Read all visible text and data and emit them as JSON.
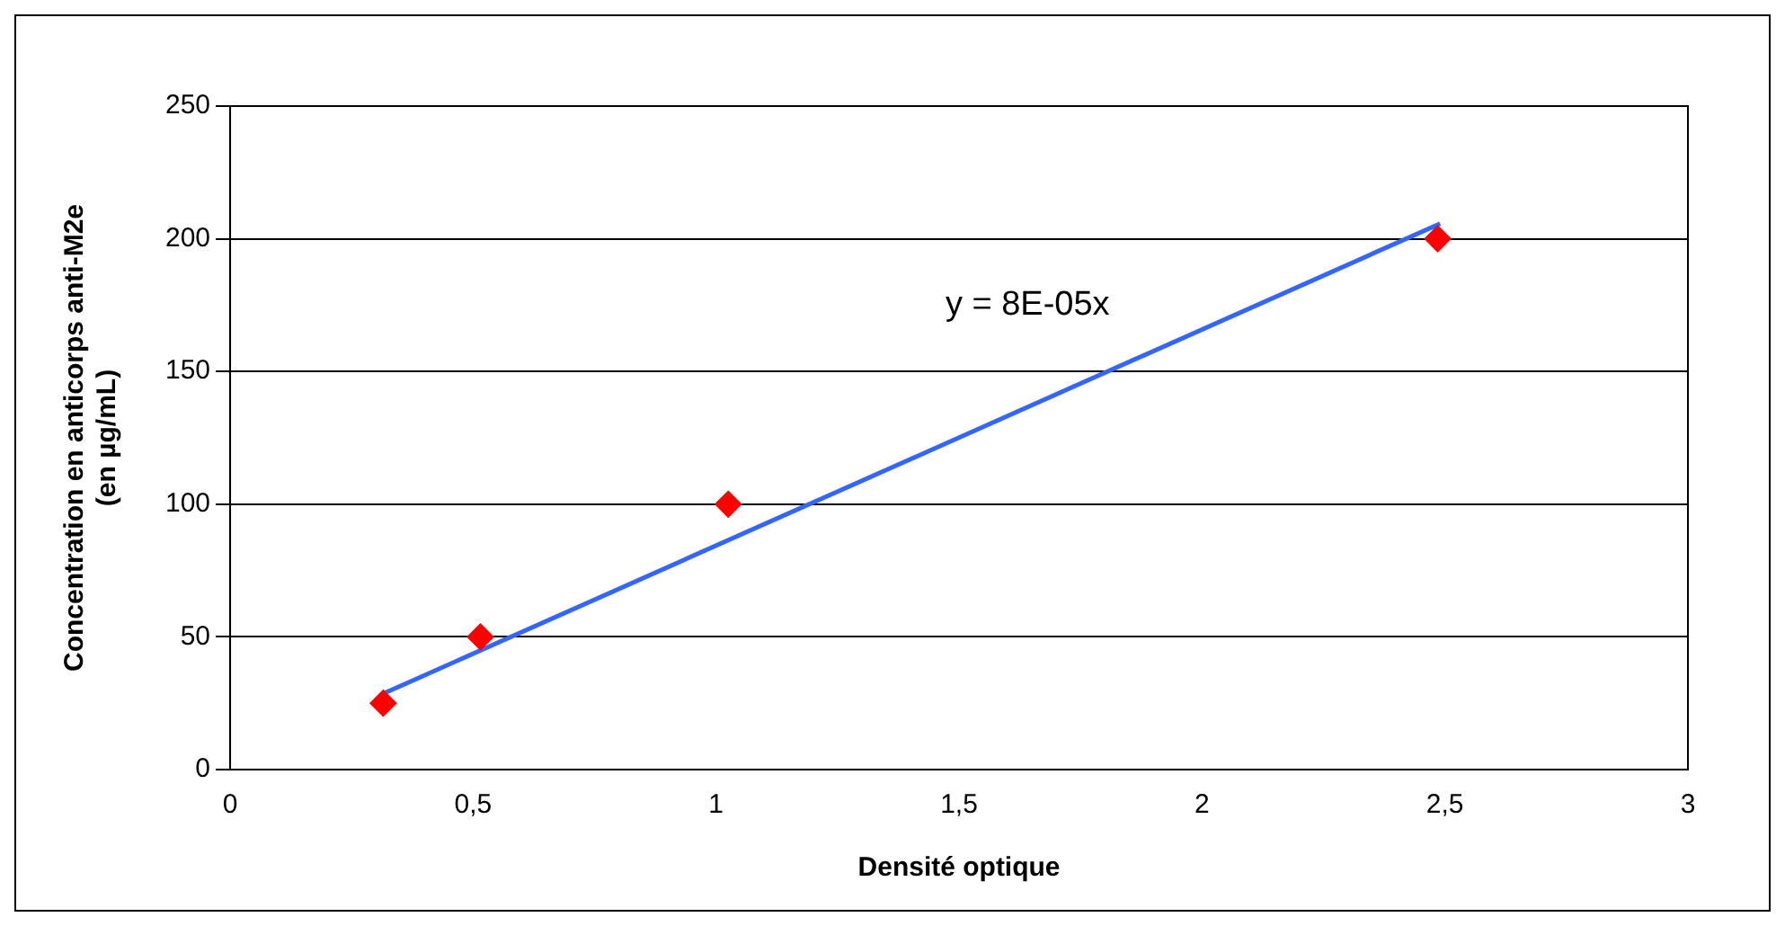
{
  "chart_data": {
    "type": "scatter",
    "xlabel": "Densité optique",
    "ylabel": "Concentration en anticorps anti-M2e\n(en µg/mL)",
    "series": [
      {
        "color": "#ff0000",
        "marker": "diamond",
        "x": [
          0.315,
          0.515,
          1.025,
          2.485
        ],
        "values": [
          25,
          50,
          100,
          200
        ]
      },
      {
        "type": "line",
        "color": "#3366ff",
        "marker": "none",
        "line_style": "solid",
        "x": [
          0.315,
          2.49
        ],
        "values": [
          28.6,
          205.7
        ]
      }
    ],
    "xlim": [
      0,
      3
    ],
    "xticks": [
      0,
      {
        "value": 0.5,
        "label": "0,5"
      },
      1,
      {
        "value": 1.5,
        "label": "1,5"
      },
      2,
      {
        "value": 2.5,
        "label": "2,5"
      },
      3
    ],
    "ylim": [
      0,
      250
    ],
    "yticks": [
      0,
      50,
      100,
      150,
      200,
      250
    ],
    "grid": "y",
    "legend": false,
    "annotations": [
      "y = 8E-05x"
    ]
  }
}
